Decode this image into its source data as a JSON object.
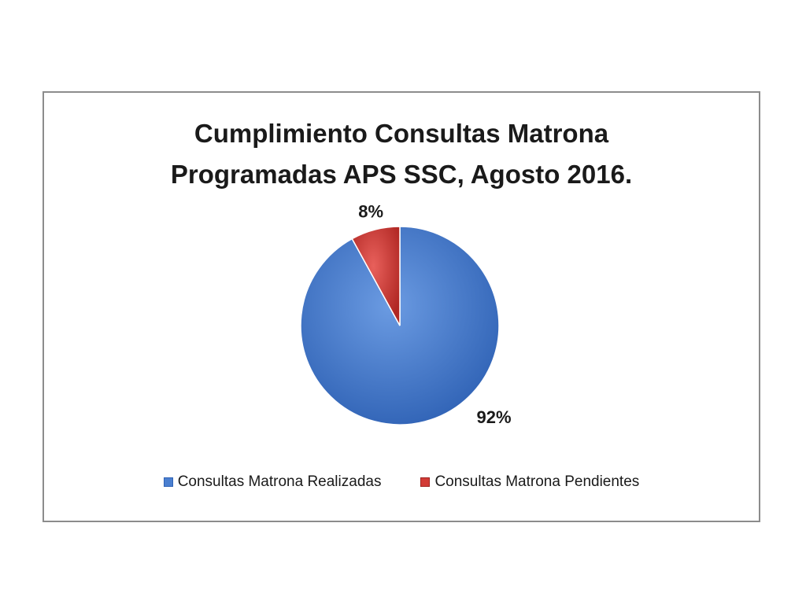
{
  "chart_data": {
    "type": "pie",
    "title_lines": [
      "Cumplimiento Consultas Matrona",
      "Programadas APS SSC, Agosto 2016."
    ],
    "categories": [
      "Consultas Matrona Realizadas",
      "Consultas Matrona Pendientes"
    ],
    "values": [
      92,
      8
    ],
    "data_labels": [
      "92%",
      "8%"
    ],
    "colors": [
      "#4a7fd0",
      "#d23b36"
    ],
    "legend_position": "bottom"
  }
}
